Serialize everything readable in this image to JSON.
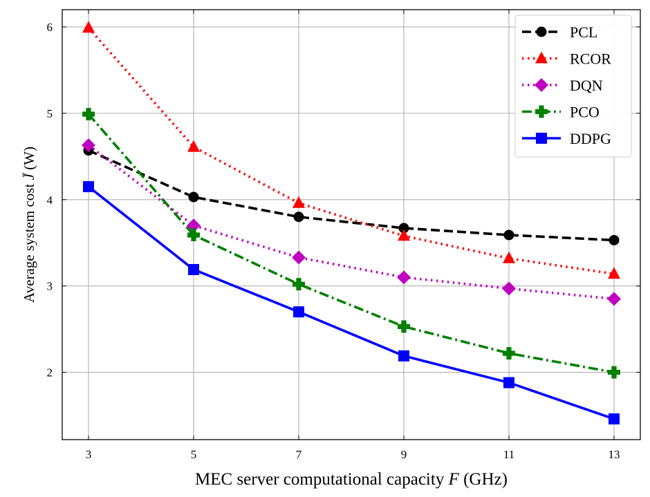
{
  "chart_data": {
    "type": "line",
    "title": "",
    "xlabel": "MEC server computational capacity F (GHz)",
    "xlabel_prefix": "MEC server computational capacity ",
    "xlabel_var": "F",
    "xlabel_suffix": " (GHz)",
    "ylabel": "Average system cost J̄ (W)",
    "ylabel_prefix": "Average system cost ",
    "ylabel_var": "J̄",
    "ylabel_suffix": " (W)",
    "x": [
      3,
      5,
      7,
      9,
      11,
      13
    ],
    "xticks": [
      "3",
      "5",
      "7",
      "9",
      "11",
      "13"
    ],
    "yticks": [
      "2",
      "3",
      "4",
      "5",
      "6"
    ],
    "xlim": [
      2.5,
      13.5
    ],
    "ylim": [
      1.22,
      6.2
    ],
    "grid": true,
    "legend_position": "top-right",
    "series": [
      {
        "name": "PCL",
        "values": [
          4.57,
          4.03,
          3.8,
          3.67,
          3.59,
          3.53
        ],
        "color": "#000000",
        "marker": "circle",
        "linestyle": "dashed"
      },
      {
        "name": "RCOR",
        "values": [
          5.99,
          4.61,
          3.96,
          3.58,
          3.32,
          3.14
        ],
        "color": "#ff0000",
        "marker": "triangle",
        "linestyle": "dotted"
      },
      {
        "name": "DQN",
        "values": [
          4.63,
          3.7,
          3.33,
          3.1,
          2.97,
          2.85
        ],
        "color": "#bf00bf",
        "marker": "diamond",
        "linestyle": "dotted"
      },
      {
        "name": "PCO",
        "values": [
          4.99,
          3.59,
          3.02,
          2.53,
          2.22,
          2.0
        ],
        "color": "#008000",
        "marker": "plus",
        "linestyle": "dashdot"
      },
      {
        "name": "DDPG",
        "values": [
          4.15,
          3.19,
          2.7,
          2.19,
          1.88,
          1.46
        ],
        "color": "#0000ff",
        "marker": "square",
        "linestyle": "solid"
      }
    ]
  }
}
